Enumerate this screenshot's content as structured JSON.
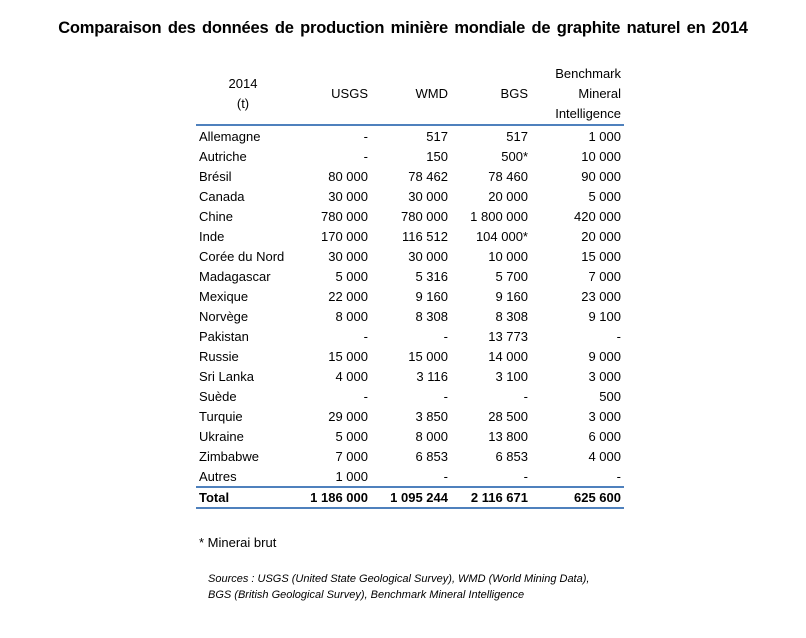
{
  "title": "Comparaison  des données de production  minière mondiale de graphite naturel  en 2014",
  "table": {
    "header": {
      "year": "2014",
      "unit": "(t)",
      "cols": [
        "USGS",
        "WMD",
        "BGS"
      ],
      "bm": [
        "Benchmark",
        "Mineral",
        "Intelligence"
      ]
    },
    "rows": [
      [
        "Allemagne",
        "-",
        "517",
        "517",
        "1 000"
      ],
      [
        "Autriche",
        "-",
        "150",
        "500*",
        "10 000"
      ],
      [
        "Brésil",
        "80 000",
        "78 462",
        "78 460",
        "90 000"
      ],
      [
        "Canada",
        "30 000",
        "30 000",
        "20 000",
        "5 000"
      ],
      [
        "Chine",
        "780 000",
        "780 000",
        "1 800 000",
        "420 000"
      ],
      [
        "Inde",
        "170 000",
        "116 512",
        "104 000*",
        "20 000"
      ],
      [
        "Corée du Nord",
        "30 000",
        "30 000",
        "10 000",
        "15 000"
      ],
      [
        "Madagascar",
        "5 000",
        "5 316",
        "5 700",
        "7 000"
      ],
      [
        "Mexique",
        "22 000",
        "9 160",
        "9 160",
        "23 000"
      ],
      [
        "Norvège",
        "8 000",
        "8 308",
        "8 308",
        "9 100"
      ],
      [
        "Pakistan",
        "-",
        "-",
        "13 773",
        "-"
      ],
      [
        "Russie",
        "15 000",
        "15 000",
        "14 000",
        "9 000"
      ],
      [
        "Sri Lanka",
        "4 000",
        "3 116",
        "3 100",
        "3 000"
      ],
      [
        "Suède",
        "-",
        "-",
        "-",
        "500"
      ],
      [
        "Turquie",
        "29 000",
        "3 850",
        "28 500",
        "3 000"
      ],
      [
        "Ukraine",
        "5 000",
        "8 000",
        "13 800",
        "6 000"
      ],
      [
        "Zimbabwe",
        "7 000",
        "6 853",
        "6 853",
        "4 000"
      ],
      [
        "Autres",
        "1 000",
        "-",
        "-",
        "-"
      ]
    ],
    "total": [
      "Total",
      "1 186 000",
      "1 095 244",
      "2 116 671",
      "625 600"
    ]
  },
  "footnote": "* Minerai brut",
  "sources": "Sources : USGS (United State Geological Survey), WMD (World Mining Data), BGS (British Geological Survey), Benchmark Mineral Intelligence",
  "colors": {
    "rule": "#4f81bd"
  }
}
